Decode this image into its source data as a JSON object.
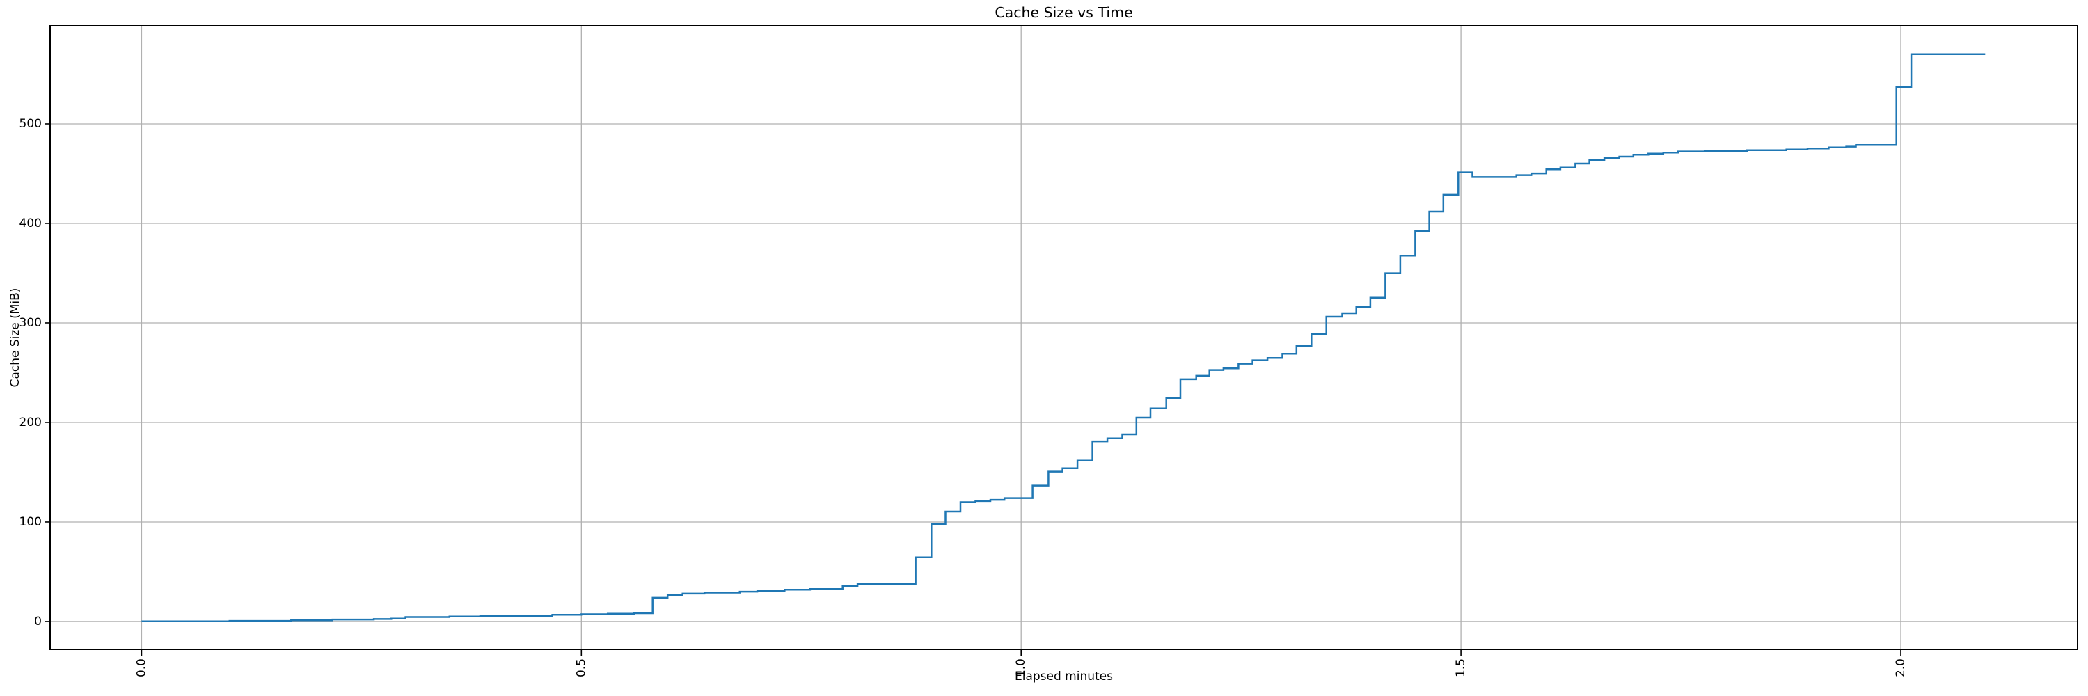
{
  "figure": {
    "background": "#ffffff",
    "plot_background": "#ffffff"
  },
  "chart_data": {
    "type": "line",
    "title": "Cache Size vs Time",
    "xlabel": "Elapsed minutes",
    "ylabel": "Cache Size (MiB)",
    "step": "post",
    "grid": true,
    "legend": "none",
    "line_color": "#1f77b4",
    "grid_color": "#b0b0b0",
    "spine_color": "#000000",
    "xlim": [
      -0.104,
      2.201
    ],
    "ylim": [
      -28,
      598.6
    ],
    "xticks": [
      0.0,
      0.5,
      1.0,
      1.5,
      2.0
    ],
    "xtick_labels": [
      "0.0",
      "0.5",
      "1.0",
      "1.5",
      "2.0"
    ],
    "xtick_rotation_deg": 90,
    "yticks": [
      0,
      100,
      200,
      300,
      400,
      500
    ],
    "ytick_labels": [
      "0",
      "100",
      "200",
      "300",
      "400",
      "500"
    ],
    "points": [
      [
        0.0,
        0.2
      ],
      [
        0.1,
        0.6
      ],
      [
        0.17,
        1.2
      ],
      [
        0.217,
        2.0
      ],
      [
        0.264,
        2.5
      ],
      [
        0.284,
        3.0
      ],
      [
        0.3,
        4.5
      ],
      [
        0.35,
        5.0
      ],
      [
        0.385,
        5.4
      ],
      [
        0.43,
        5.8
      ],
      [
        0.467,
        6.8
      ],
      [
        0.5,
        7.3
      ],
      [
        0.53,
        7.8
      ],
      [
        0.56,
        8.4
      ],
      [
        0.581,
        23.8
      ],
      [
        0.598,
        26.5
      ],
      [
        0.615,
        28.0
      ],
      [
        0.64,
        29.0
      ],
      [
        0.68,
        30.0
      ],
      [
        0.7,
        30.6
      ],
      [
        0.731,
        32.0
      ],
      [
        0.76,
        32.6
      ],
      [
        0.797,
        35.8
      ],
      [
        0.814,
        37.6
      ],
      [
        0.88,
        64.5
      ],
      [
        0.898,
        98.0
      ],
      [
        0.914,
        110.5
      ],
      [
        0.931,
        119.9
      ],
      [
        0.948,
        121.0
      ],
      [
        0.965,
        122.3
      ],
      [
        0.981,
        124.0
      ],
      [
        1.013,
        136.6
      ],
      [
        1.031,
        150.6
      ],
      [
        1.047,
        154.0
      ],
      [
        1.064,
        161.7
      ],
      [
        1.081,
        181.0
      ],
      [
        1.098,
        184.1
      ],
      [
        1.115,
        188.1
      ],
      [
        1.131,
        204.9
      ],
      [
        1.147,
        214.2
      ],
      [
        1.165,
        224.7
      ],
      [
        1.181,
        243.4
      ],
      [
        1.199,
        246.9
      ],
      [
        1.214,
        252.7
      ],
      [
        1.23,
        254.4
      ],
      [
        1.247,
        259.0
      ],
      [
        1.263,
        262.5
      ],
      [
        1.28,
        264.8
      ],
      [
        1.297,
        269.1
      ],
      [
        1.313,
        277.1
      ],
      [
        1.33,
        288.8
      ],
      [
        1.347,
        306.3
      ],
      [
        1.365,
        309.8
      ],
      [
        1.381,
        316.1
      ],
      [
        1.397,
        325.4
      ],
      [
        1.414,
        349.9
      ],
      [
        1.431,
        367.6
      ],
      [
        1.448,
        392.5
      ],
      [
        1.464,
        411.9
      ],
      [
        1.48,
        428.7
      ],
      [
        1.497,
        451.3
      ],
      [
        1.513,
        446.6
      ],
      [
        1.563,
        448.5
      ],
      [
        1.58,
        450.3
      ],
      [
        1.597,
        454.3
      ],
      [
        1.613,
        456.1
      ],
      [
        1.63,
        460.1
      ],
      [
        1.646,
        463.6
      ],
      [
        1.663,
        465.5
      ],
      [
        1.68,
        467.1
      ],
      [
        1.696,
        469.0
      ],
      [
        1.713,
        470.1
      ],
      [
        1.73,
        471.1
      ],
      [
        1.747,
        472.3
      ],
      [
        1.777,
        472.9
      ],
      [
        1.825,
        473.6
      ],
      [
        1.87,
        474.3
      ],
      [
        1.894,
        475.3
      ],
      [
        1.918,
        476.4
      ],
      [
        1.938,
        477.2
      ],
      [
        1.949,
        478.8
      ],
      [
        1.995,
        537.1
      ],
      [
        2.012,
        570.1
      ],
      [
        2.096,
        570.1
      ]
    ]
  }
}
